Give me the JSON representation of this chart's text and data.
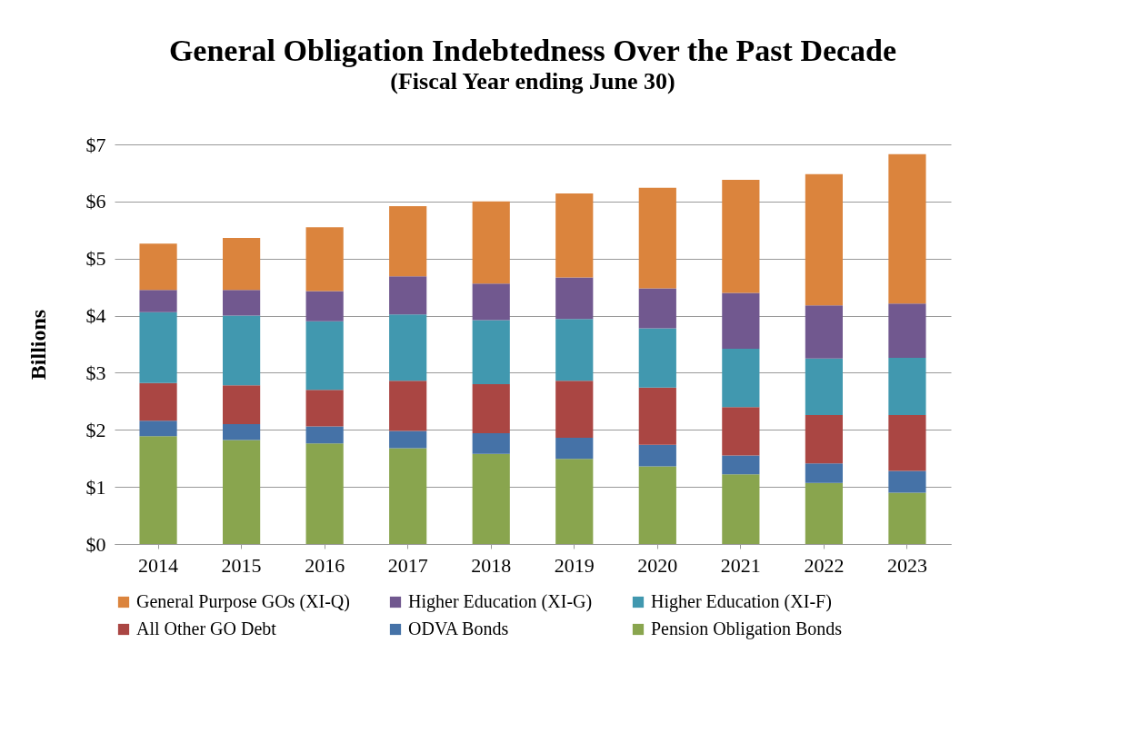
{
  "chart_data": {
    "type": "bar",
    "title": "General Obligation Indebtedness Over the Past Decade",
    "subtitle": "(Fiscal Year ending June 30)",
    "ylabel": "Billions",
    "stacked": true,
    "grid": "y",
    "legend": "bottom",
    "categories": [
      "2014",
      "2015",
      "2016",
      "2017",
      "2018",
      "2019",
      "2020",
      "2021",
      "2022",
      "2023"
    ],
    "ylim": [
      0,
      7
    ],
    "yticks": [
      {
        "value": 0,
        "label": "$0"
      },
      {
        "value": 1,
        "label": "$1"
      },
      {
        "value": 2,
        "label": "$2"
      },
      {
        "value": 3,
        "label": "$3"
      },
      {
        "value": 4,
        "label": "$4"
      },
      {
        "value": 5,
        "label": "$5"
      },
      {
        "value": 6,
        "label": "$6"
      },
      {
        "value": 7,
        "label": "$7"
      }
    ],
    "series": [
      {
        "name": "Pension Obligation Bonds",
        "color": "#89a54e",
        "values": [
          1.89,
          1.82,
          1.76,
          1.68,
          1.58,
          1.49,
          1.36,
          1.22,
          1.07,
          0.9
        ]
      },
      {
        "name": "ODVA Bonds",
        "color": "#4572a7",
        "values": [
          0.27,
          0.28,
          0.3,
          0.3,
          0.36,
          0.37,
          0.38,
          0.33,
          0.34,
          0.38
        ]
      },
      {
        "name": "All Other GO Debt",
        "color": "#aa4643",
        "values": [
          0.66,
          0.68,
          0.64,
          0.88,
          0.86,
          1.0,
          1.0,
          0.85,
          0.85,
          0.98
        ]
      },
      {
        "name": "Higher Education (XI-F)",
        "color": "#4198af",
        "values": [
          1.24,
          1.22,
          1.2,
          1.16,
          1.12,
          1.08,
          1.04,
          1.02,
          0.99,
          1.0
        ]
      },
      {
        "name": "Higher Education (XI-G)",
        "color": "#71588f",
        "values": [
          0.39,
          0.45,
          0.53,
          0.67,
          0.64,
          0.73,
          0.7,
          0.98,
          0.93,
          0.95
        ]
      },
      {
        "name": "General Purpose GOs (XI-Q)",
        "color": "#db843d",
        "values": [
          0.81,
          0.91,
          1.12,
          1.23,
          1.44,
          1.47,
          1.76,
          1.98,
          2.3,
          2.62
        ]
      }
    ]
  }
}
